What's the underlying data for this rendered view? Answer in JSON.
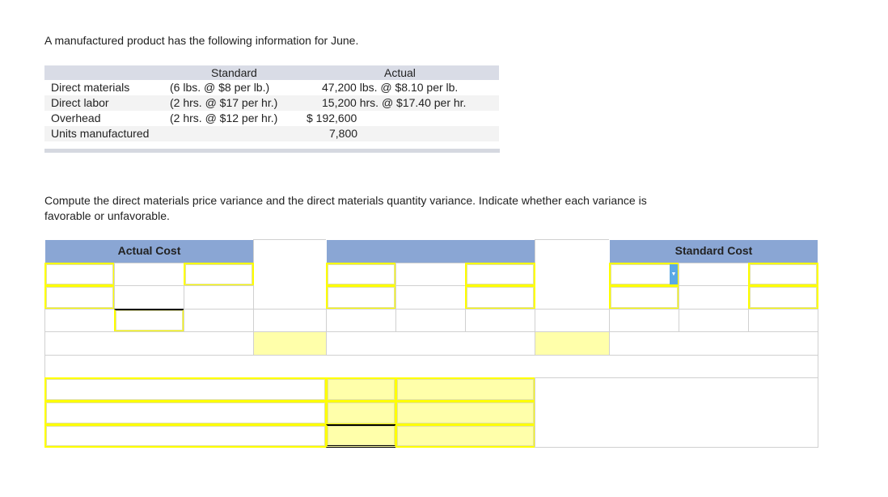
{
  "intro": "A manufactured product has the following information for June.",
  "info_table": {
    "headers": {
      "standard": "Standard",
      "actual": "Actual"
    },
    "rows": [
      {
        "label": "Direct materials",
        "standard": "(6 lbs. @ $8 per lb.)",
        "actual": "47,200 lbs. @ $8.10 per lb."
      },
      {
        "label": "Direct labor",
        "standard": "(2 hrs. @ $17 per hr.)",
        "actual": "15,200 hrs. @ $17.40 per hr."
      },
      {
        "label": "Overhead",
        "standard": "(2 hrs. @ $12 per hr.)",
        "actual": "$ 192,600"
      },
      {
        "label": "Units manufactured",
        "standard": "",
        "actual": "7,800"
      }
    ]
  },
  "question": "Compute the direct materials price variance and  the direct materials quantity variance. Indicate whether each variance is favorable or unfavorable.",
  "worksheet": {
    "actual_cost_header": "Actual Cost",
    "middle_header": "",
    "standard_cost_header": "Standard Cost"
  }
}
